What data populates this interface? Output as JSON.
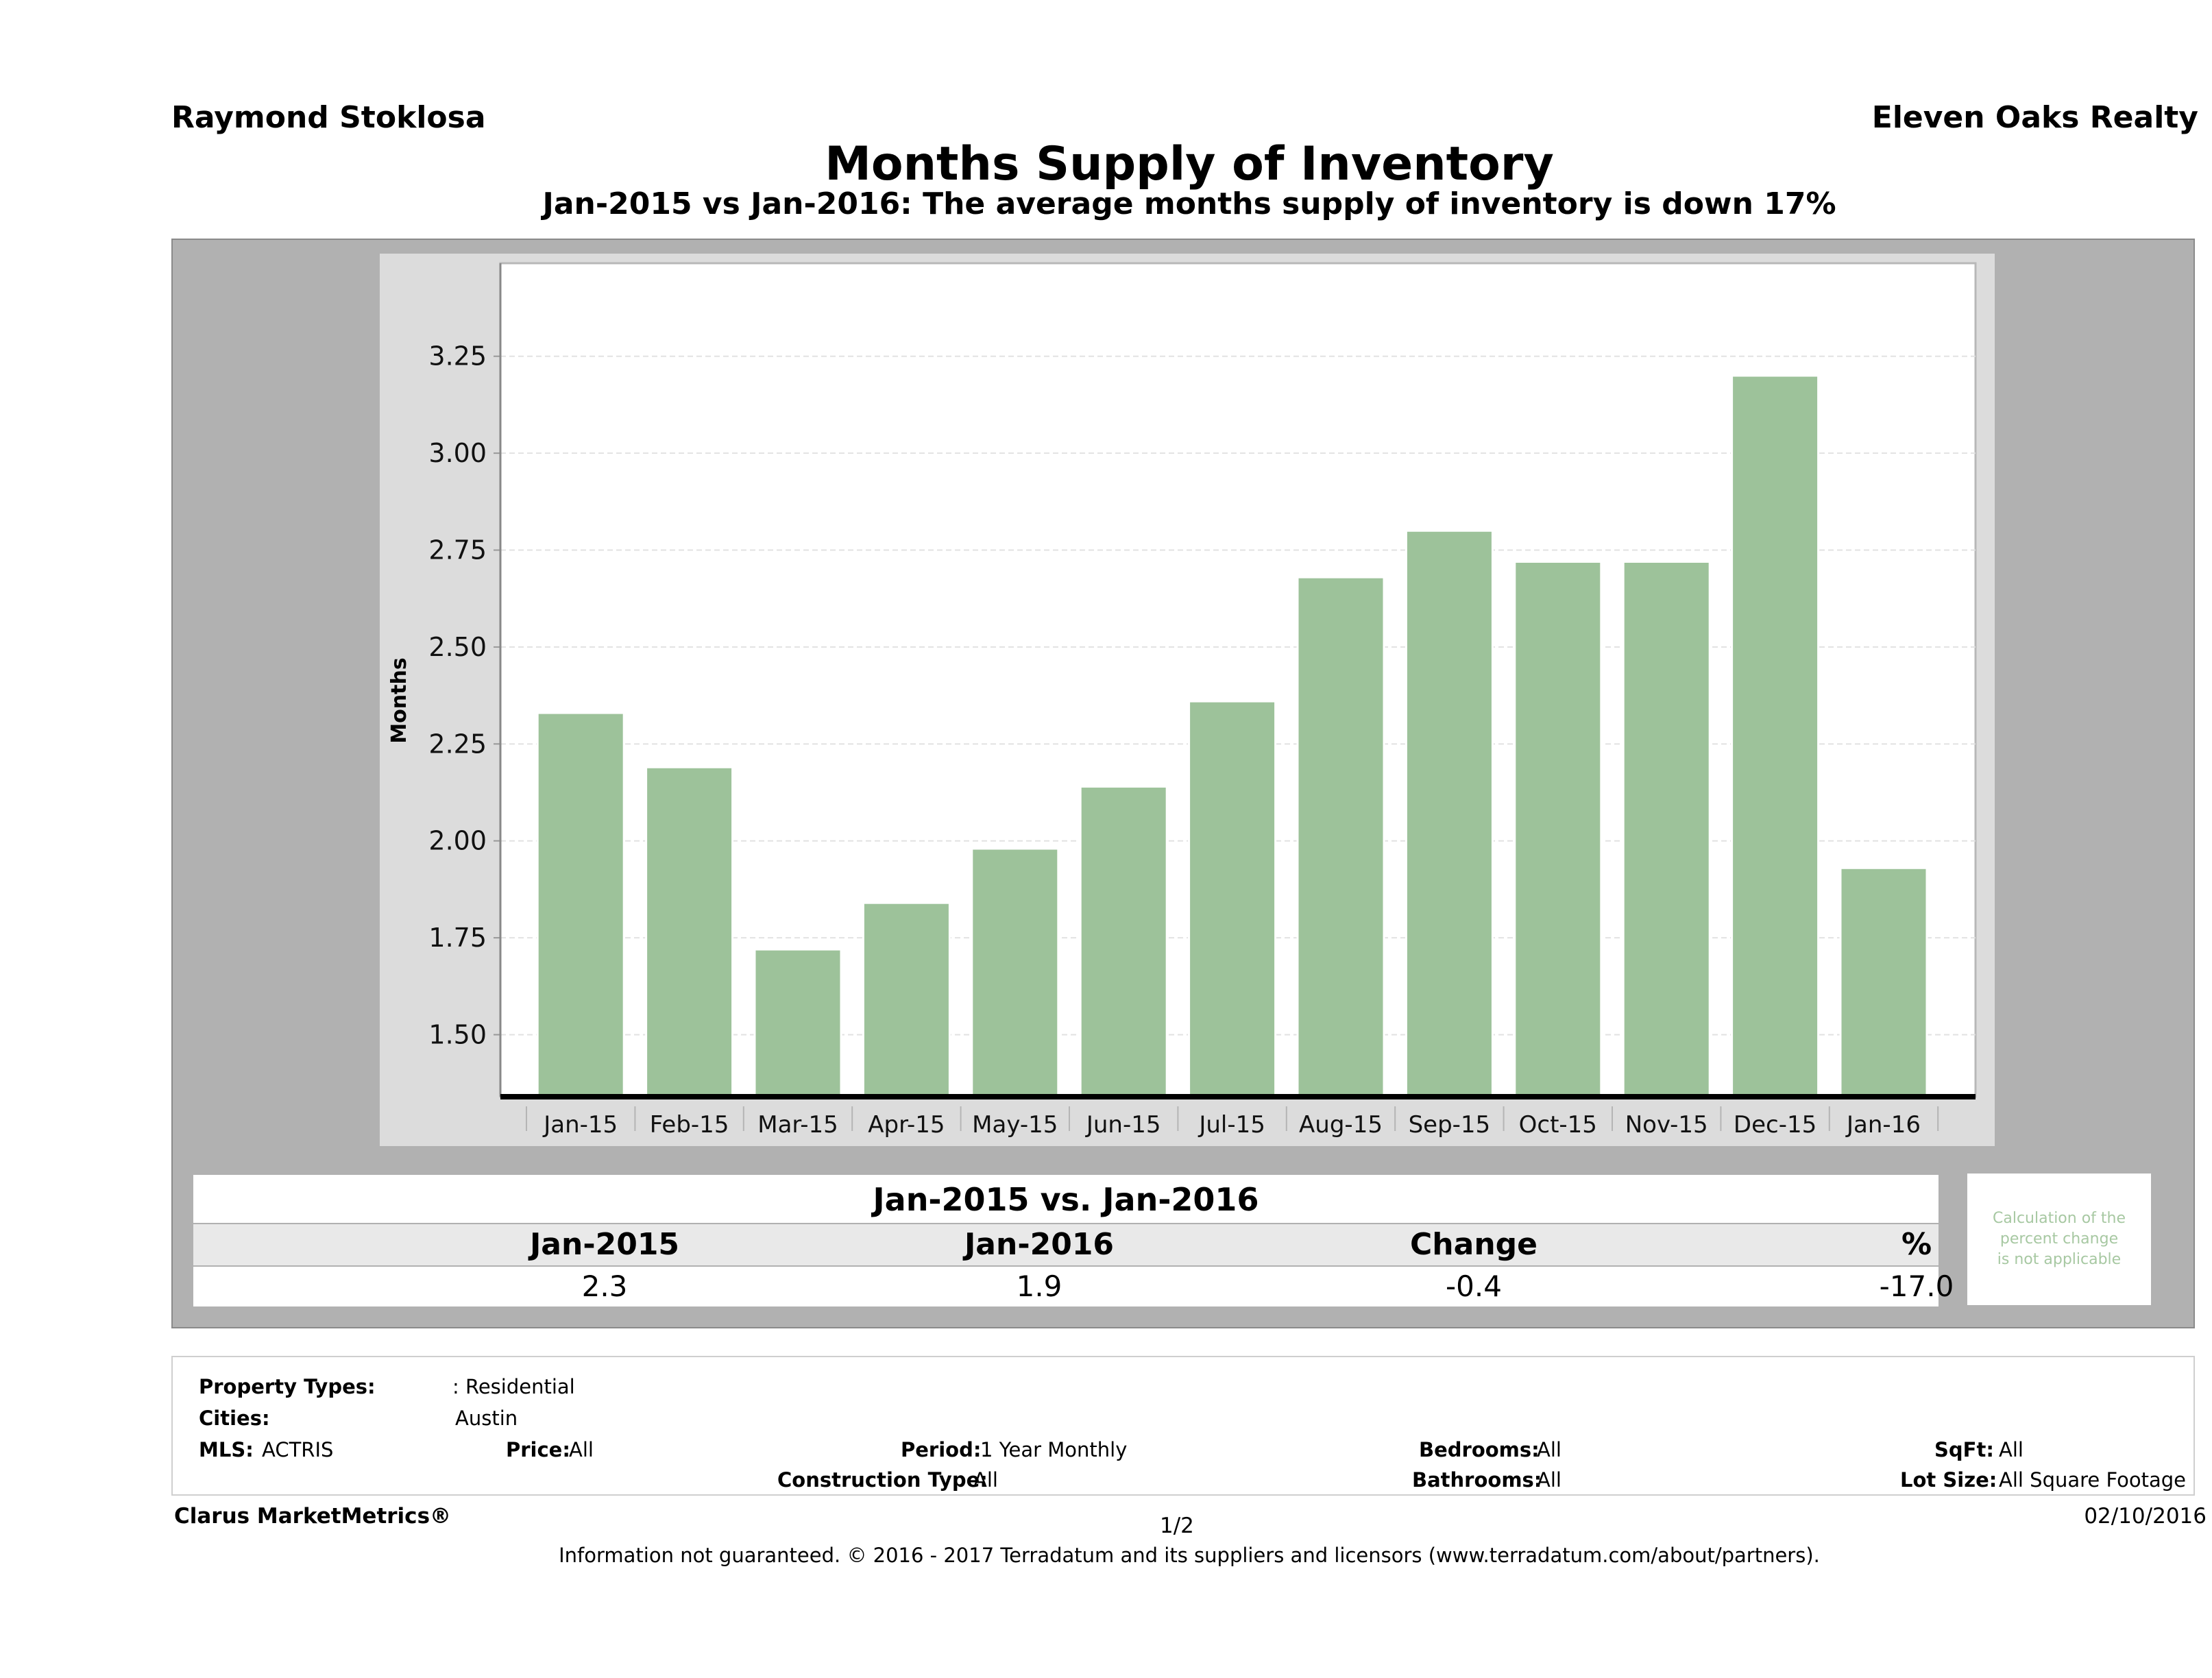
{
  "header": {
    "agent": "Raymond Stoklosa",
    "company": "Eleven Oaks Realty",
    "title": "Months Supply of Inventory",
    "subtitle": "Jan-2015 vs Jan-2016: The average months supply of inventory is down 17%"
  },
  "chart_data": {
    "type": "bar",
    "ylabel": "Months",
    "ylim": [
      1.34,
      3.49
    ],
    "yticks": [
      "1.50",
      "1.75",
      "2.00",
      "2.25",
      "2.50",
      "2.75",
      "3.00",
      "3.25"
    ],
    "ytick_values": [
      1.5,
      1.75,
      2.0,
      2.25,
      2.5,
      2.75,
      3.0,
      3.25
    ],
    "categories": [
      "Jan-15",
      "Feb-15",
      "Mar-15",
      "Apr-15",
      "May-15",
      "Jun-15",
      "Jul-15",
      "Aug-15",
      "Sep-15",
      "Oct-15",
      "Nov-15",
      "Dec-15",
      "Jan-16"
    ],
    "values": [
      2.33,
      2.19,
      1.72,
      1.84,
      1.98,
      2.14,
      2.36,
      2.68,
      2.8,
      2.72,
      2.72,
      3.2,
      1.93
    ],
    "bar_color": "#9dc29a",
    "grid": true
  },
  "comparison": {
    "title": "Jan-2015 vs. Jan-2016",
    "headers": [
      "Jan-2015",
      "Jan-2016",
      "Change",
      "%"
    ],
    "values": [
      "2.3",
      "1.9",
      "-0.4",
      "-17.0"
    ],
    "note_lines": [
      "Calculation of the",
      "percent change",
      "is not applicable"
    ]
  },
  "filters": {
    "property_types_label": "Property Types:",
    "property_types_value": ": Residential",
    "cities_label": "Cities:",
    "cities_value": "Austin",
    "mls_label": "MLS:",
    "mls_value": "ACTRIS",
    "price_label": "Price:",
    "price_value": "All",
    "period_label": "Period:",
    "period_value": "1 Year Monthly",
    "construction_label": "Construction Type:",
    "construction_value": "All",
    "bedrooms_label": "Bedrooms:",
    "bedrooms_value": "All",
    "bathrooms_label": "Bathrooms:",
    "bathrooms_value": "All",
    "sqft_label": "SqFt:",
    "sqft_value": "All",
    "lotsize_label": "Lot Size:",
    "lotsize_value": "All Square Footage"
  },
  "footer": {
    "brand": "Clarus MarketMetrics®",
    "page": "1/2",
    "date": "02/10/2016",
    "disclaimer": "Information not guaranteed. © 2016 - 2017 Terradatum and its suppliers and licensors (www.terradatum.com/about/partners)."
  }
}
